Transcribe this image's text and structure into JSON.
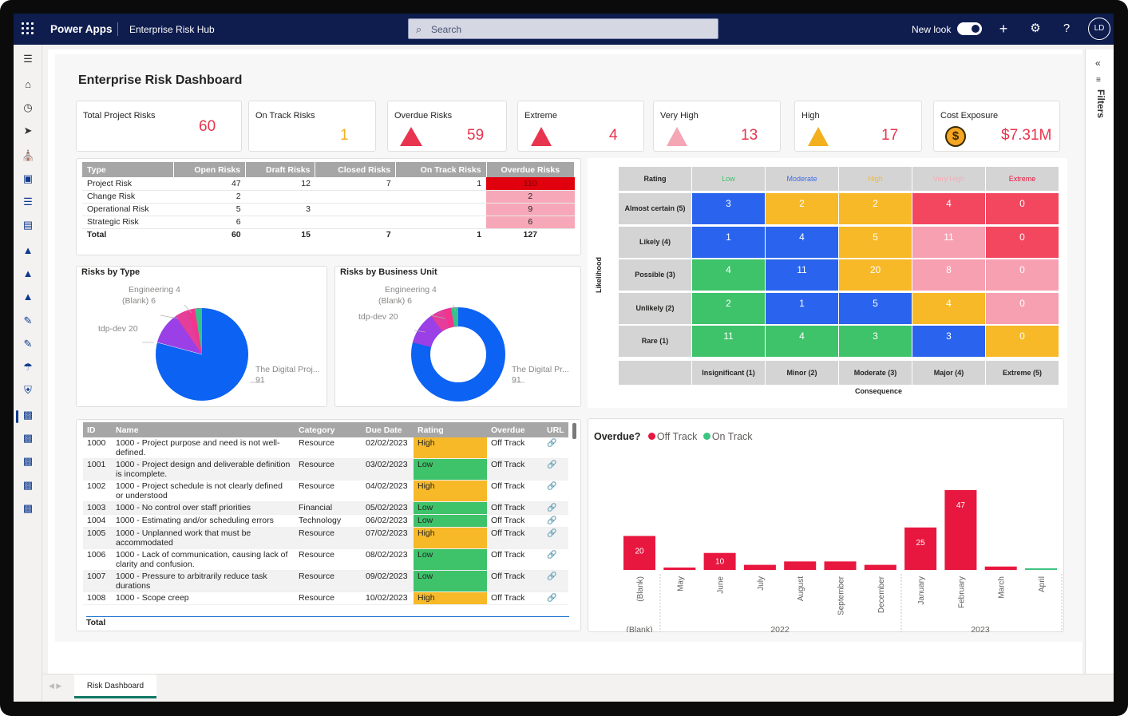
{
  "topbar": {
    "brand": "Power Apps",
    "app_name": "Enterprise Risk Hub",
    "search_placeholder": "Search",
    "new_look_label": "New look",
    "avatar_initials": "LD"
  },
  "right_pane": {
    "filters_label": "Filters"
  },
  "bottom_tab": {
    "label": "Risk Dashboard"
  },
  "dashboard": {
    "title": "Enterprise Risk Dashboard"
  },
  "kpis": [
    {
      "label": "Total Project Risks",
      "value": "60"
    },
    {
      "label": "On Track Risks",
      "value": "1"
    },
    {
      "label": "Overdue Risks",
      "value": "59"
    },
    {
      "label": "Extreme",
      "value": "4"
    },
    {
      "label": "Very High",
      "value": "13"
    },
    {
      "label": "High",
      "value": "17"
    },
    {
      "label": "Cost Exposure",
      "value": "$7.31M"
    }
  ],
  "summary_table": {
    "headers": [
      "Type",
      "Open Risks",
      "Draft Risks",
      "Closed Risks",
      "On Track Risks",
      "Overdue Risks"
    ],
    "rows": [
      [
        "Project Risk",
        "47",
        "12",
        "7",
        "1",
        "110"
      ],
      [
        "Change Risk",
        "2",
        "",
        "",
        "",
        "2"
      ],
      [
        "Operational Risk",
        "5",
        "3",
        "",
        "",
        "9"
      ],
      [
        "Strategic Risk",
        "6",
        "",
        "",
        "",
        "6"
      ]
    ],
    "total": [
      "Total",
      "60",
      "15",
      "7",
      "1",
      "127"
    ]
  },
  "pie_type": {
    "title": "Risks by Type",
    "labels": {
      "engineering": "Engineering 4",
      "blank": "(Blank) 6",
      "tdp": "tdp-dev 20",
      "digital": "The Digital Proj...",
      "digital_val": "91"
    }
  },
  "pie_unit": {
    "title": "Risks by Business Unit",
    "labels": {
      "engineering": "Engineering 4",
      "blank": "(Blank) 6",
      "tdp": "tdp-dev 20",
      "digital": "The Digital Pr...",
      "digital_val": "91"
    }
  },
  "heatmap": {
    "corner": "Rating",
    "columns": [
      "Low",
      "Moderate",
      "High",
      "Very High",
      "Extreme"
    ],
    "rows": [
      "Almost certain (5)",
      "Likely (4)",
      "Possible (3)",
      "Unlikely (2)",
      "Rare (1)"
    ],
    "values": [
      [
        "3",
        "2",
        "2",
        "4",
        "0"
      ],
      [
        "1",
        "4",
        "5",
        "11",
        "0"
      ],
      [
        "4",
        "11",
        "20",
        "8",
        "0"
      ],
      [
        "2",
        "1",
        "5",
        "4",
        "0"
      ],
      [
        "11",
        "4",
        "3",
        "3",
        "0"
      ]
    ],
    "consequences": [
      "Insignificant (1)",
      "Minor (2)",
      "Moderate (3)",
      "Major (4)",
      "Extreme (5)"
    ],
    "x_title": "Consequence",
    "y_title": "Likelihood"
  },
  "detail_table": {
    "headers": [
      "ID",
      "Name",
      "Category",
      "Due Date",
      "Rating",
      "Overdue",
      "URL"
    ],
    "rows": [
      [
        "1000",
        "1000 - Project purpose and need is not well-defined.",
        "Resource",
        "02/02/2023",
        "High",
        "Off Track"
      ],
      [
        "1001",
        "1000 - Project design and deliverable definition is incomplete.",
        "Resource",
        "03/02/2023",
        "Low",
        "Off Track"
      ],
      [
        "1002",
        "1000 - Project schedule is not clearly defined or understood",
        "Resource",
        "04/02/2023",
        "High",
        "Off Track"
      ],
      [
        "1003",
        "1000 - No control over staff priorities",
        "Financial",
        "05/02/2023",
        "Low",
        "Off Track"
      ],
      [
        "1004",
        "1000 - Estimating and/or scheduling errors",
        "Technology",
        "06/02/2023",
        "Low",
        "Off Track"
      ],
      [
        "1005",
        "1000 - Unplanned work that must be accommodated",
        "Resource",
        "07/02/2023",
        "High",
        "Off Track"
      ],
      [
        "1006",
        "1000 - Lack of communication, causing lack of clarity and confusion.",
        "Resource",
        "08/02/2023",
        "Low",
        "Off Track"
      ],
      [
        "1007",
        "1000 - Pressure to arbitrarily reduce task durations",
        "Resource",
        "09/02/2023",
        "Low",
        "Off Track"
      ],
      [
        "1008",
        "1000 - Scope creep",
        "Resource",
        "10/02/2023",
        "High",
        "Off Track"
      ]
    ],
    "total_label": "Total"
  },
  "chart_data": {
    "type": "bar",
    "title": "Overdue?",
    "series": [
      {
        "name": "Off Track",
        "values": [
          20,
          1,
          10,
          3,
          5,
          5,
          3,
          25,
          47,
          2,
          0
        ]
      },
      {
        "name": "On Track",
        "values": [
          0,
          0,
          0,
          0,
          0,
          0,
          0,
          0,
          0,
          0,
          1
        ]
      }
    ],
    "categories": [
      "(Blank)",
      "May",
      "June",
      "July",
      "August",
      "September",
      "December",
      "January",
      "February",
      "March",
      "April"
    ],
    "groups": [
      "(Blank)",
      "2022",
      "2023"
    ],
    "colors": {
      "off_track": "#e8173f",
      "on_track": "#3cc480"
    },
    "data_labels": [
      "20",
      "10",
      "25",
      "47"
    ]
  }
}
